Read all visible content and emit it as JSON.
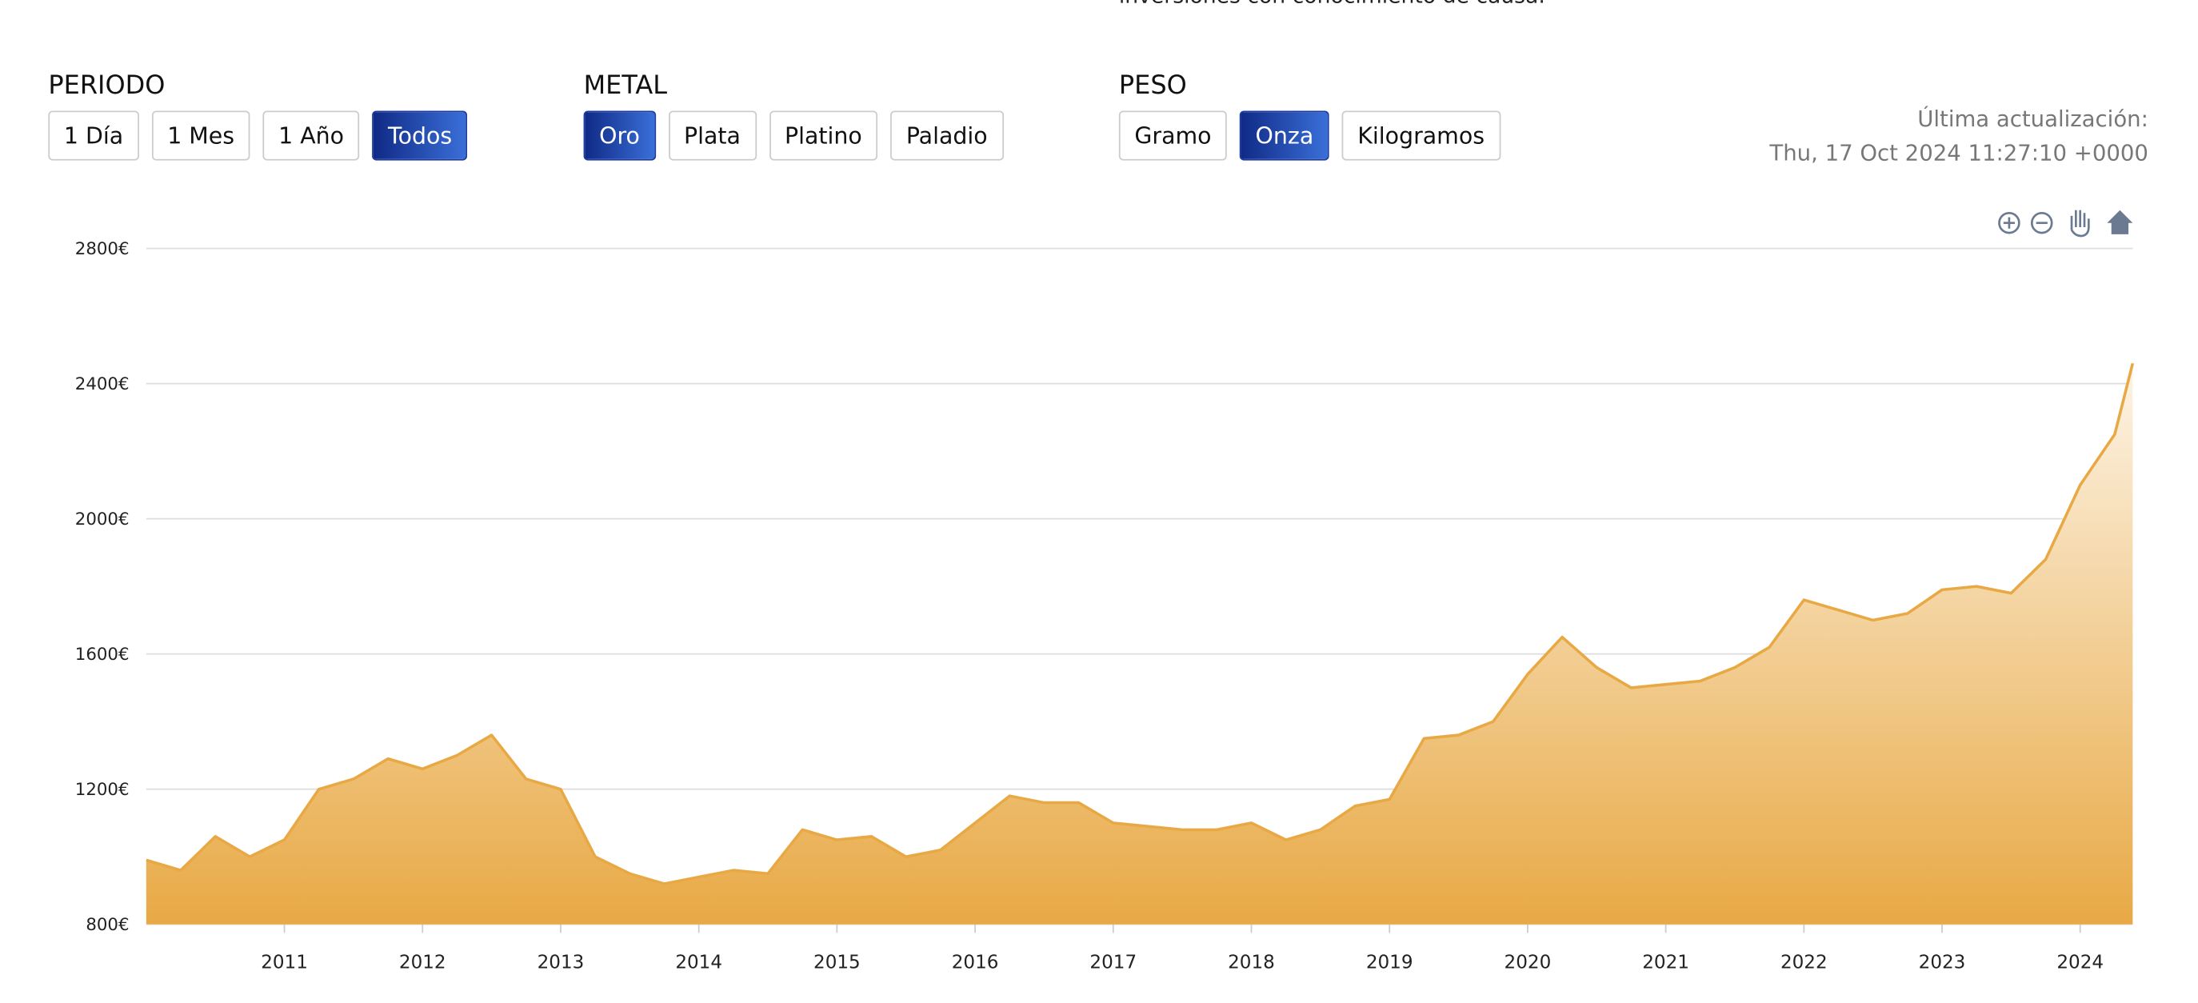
{
  "header_text": "inversiones con conocimiento de causa.",
  "controls": [
    {
      "label": "PERIODO",
      "options": [
        "1 Día",
        "1 Mes",
        "1 Año",
        "Todos"
      ],
      "selected": 3
    },
    {
      "label": "METAL",
      "options": [
        "Oro",
        "Plata",
        "Platino",
        "Paladio"
      ],
      "selected": 0
    },
    {
      "label": "PESO",
      "options": [
        "Gramo",
        "Onza",
        "Kilogramos"
      ],
      "selected": 1
    }
  ],
  "last_update": {
    "label": "Última actualización:",
    "value": "Thu, 17 Oct 2024 11:27:10 +0000"
  },
  "chart_data": {
    "type": "area",
    "color": "#e8a945",
    "grid": true,
    "x": [
      2010.0,
      2010.25,
      2010.5,
      2010.75,
      2011.0,
      2011.25,
      2011.5,
      2011.75,
      2012.0,
      2012.25,
      2012.5,
      2012.75,
      2013.0,
      2013.25,
      2013.5,
      2013.75,
      2014.0,
      2014.25,
      2014.5,
      2014.75,
      2015.0,
      2015.25,
      2015.5,
      2015.75,
      2016.0,
      2016.25,
      2016.5,
      2016.75,
      2017.0,
      2017.25,
      2017.5,
      2017.75,
      2018.0,
      2018.25,
      2018.5,
      2018.75,
      2019.0,
      2019.25,
      2019.5,
      2019.75,
      2020.0,
      2020.25,
      2020.5,
      2020.75,
      2021.0,
      2021.25,
      2021.5,
      2021.75,
      2022.0,
      2022.25,
      2022.5,
      2022.75,
      2023.0,
      2023.25,
      2023.5,
      2023.75,
      2024.0,
      2024.25,
      2024.38
    ],
    "values": [
      990,
      960,
      1060,
      1000,
      1050,
      1200,
      1230,
      1290,
      1260,
      1300,
      1360,
      1230,
      1200,
      1000,
      950,
      920,
      940,
      960,
      950,
      1080,
      1050,
      1060,
      1000,
      1020,
      1100,
      1180,
      1160,
      1160,
      1100,
      1090,
      1080,
      1080,
      1100,
      1050,
      1080,
      1150,
      1170,
      1350,
      1360,
      1400,
      1540,
      1650,
      1560,
      1500,
      1510,
      1520,
      1560,
      1620,
      1760,
      1730,
      1700,
      1720,
      1790,
      1800,
      1780,
      1880,
      2100,
      2250,
      2460
    ],
    "xlim": [
      2010.0,
      2024.38
    ],
    "xticks": [
      2011,
      2012,
      2013,
      2014,
      2015,
      2016,
      2017,
      2018,
      2019,
      2020,
      2021,
      2022,
      2023,
      2024
    ],
    "ylim": [
      800,
      2800
    ],
    "yticks": [
      {
        "value": 800,
        "label": "800€"
      },
      {
        "value": 1200,
        "label": "1200€"
      },
      {
        "value": 1600,
        "label": "1600€"
      },
      {
        "value": 2000,
        "label": "2000€"
      },
      {
        "value": 2400,
        "label": "2400€"
      },
      {
        "value": 2800,
        "label": "2800€"
      }
    ]
  }
}
